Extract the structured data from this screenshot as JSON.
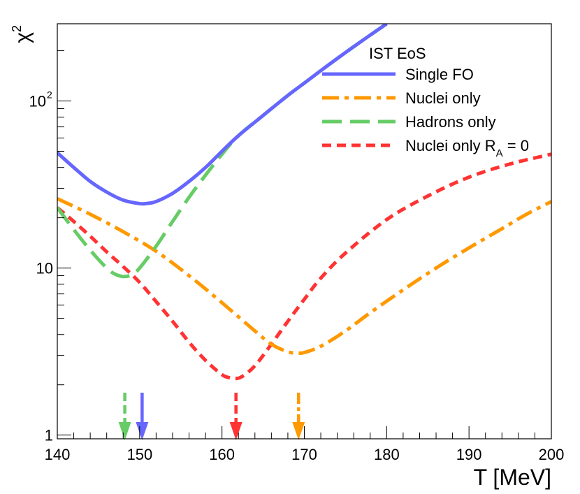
{
  "chart_data": {
    "type": "line",
    "title": "",
    "xlabel": "T [MeV]",
    "ylabel": "χ²",
    "xlim": [
      140,
      200
    ],
    "ylim": [
      0.95,
      290
    ],
    "yscale": "log",
    "x_ticks": [
      140,
      150,
      160,
      170,
      180,
      190,
      200
    ],
    "y_ticks": [
      {
        "value": 1,
        "label": "1"
      },
      {
        "value": 10,
        "label": "10"
      },
      {
        "value": 100,
        "label": "10",
        "exponent": "2"
      }
    ],
    "legend": {
      "title": "IST EoS",
      "position": "top-right",
      "entries": [
        {
          "label": "Single FO",
          "series": 0
        },
        {
          "label": "Nuclei only",
          "series": 1
        },
        {
          "label": "Hadrons only",
          "series": 2
        },
        {
          "label": "Nuclei only R",
          "subscript": "A",
          "suffix": " = 0",
          "series": 3
        }
      ]
    },
    "series": [
      {
        "name": "Single FO",
        "color": "#6666ff",
        "style": "solid",
        "minimum_x": 150.3,
        "x": [
          140,
          142,
          144,
          146,
          148,
          150,
          151,
          152,
          154,
          156,
          158,
          160,
          162,
          165,
          168,
          170,
          172,
          175,
          178,
          180
        ],
        "y": [
          49,
          40,
          33,
          28.5,
          25.5,
          24.3,
          24.4,
          25,
          28,
          33,
          40,
          50,
          62,
          82,
          108,
          128,
          152,
          195,
          248,
          290
        ]
      },
      {
        "name": "Nuclei only",
        "color": "#ff9900",
        "style": "dashdot",
        "minimum_x": 169.3,
        "x": [
          140,
          144,
          148,
          152,
          156,
          160,
          164,
          166,
          168,
          169.3,
          170,
          172,
          175,
          178,
          182,
          186,
          190,
          194,
          197,
          200
        ],
        "y": [
          26,
          21,
          16.5,
          12.6,
          9,
          6.2,
          4.2,
          3.5,
          3.15,
          3.1,
          3.12,
          3.4,
          4.2,
          5.4,
          7.4,
          10,
          13.2,
          17.2,
          21,
          25
        ]
      },
      {
        "name": "Hadrons only",
        "color": "#66cc66",
        "style": "dashed",
        "minimum_x": 148.2,
        "x": [
          140,
          142,
          144,
          146,
          147,
          148,
          149,
          150,
          152,
          154,
          156,
          158,
          160,
          162,
          165,
          168,
          170,
          172,
          175,
          178,
          180
        ],
        "y": [
          23,
          17,
          12.8,
          10,
          9.2,
          8.9,
          9.1,
          10,
          13.5,
          19,
          26.5,
          36,
          48,
          62,
          82,
          108,
          128,
          152,
          195,
          248,
          290
        ]
      },
      {
        "name": "Nuclei only R_A = 0",
        "color": "#ff3333",
        "style": "dotted-dash",
        "minimum_x": 161.7,
        "x": [
          140,
          142,
          144,
          146,
          148,
          150,
          152,
          154,
          156,
          158,
          160,
          161,
          161.7,
          162.5,
          164,
          166,
          168,
          170,
          172,
          175,
          180,
          185,
          190,
          195,
          200
        ],
        "y": [
          23,
          19,
          15.5,
          12.5,
          10.2,
          8.2,
          6.3,
          4.8,
          3.6,
          2.8,
          2.3,
          2.2,
          2.18,
          2.25,
          2.6,
          3.5,
          4.8,
          6.5,
          8.7,
          12.3,
          19.5,
          27,
          35,
          42,
          48
        ]
      }
    ],
    "arrows": [
      {
        "x": 148.2,
        "color": "#66cc66",
        "style": "dashed"
      },
      {
        "x": 150.3,
        "color": "#6666ff",
        "style": "solid"
      },
      {
        "x": 161.7,
        "color": "#ff3333",
        "style": "dotted-dash"
      },
      {
        "x": 169.3,
        "color": "#ff9900",
        "style": "dashdot"
      }
    ]
  }
}
